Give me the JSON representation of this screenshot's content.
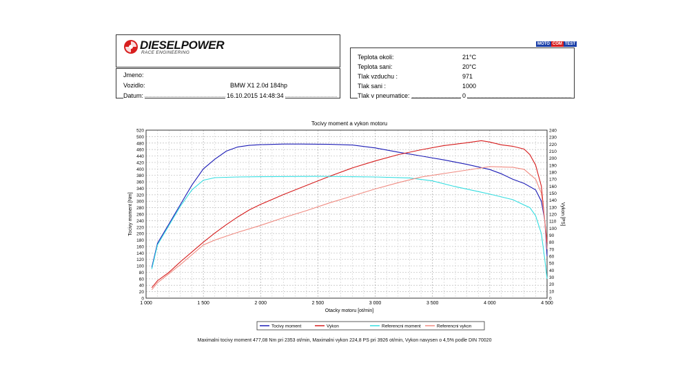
{
  "header": {
    "brand": "DIESELPOWER",
    "brand_sub": "RACE ENGINEERING",
    "badge": [
      "MOTO",
      "COM",
      "TEST"
    ]
  },
  "info": [
    {
      "label": "Jmeno:",
      "value": ""
    },
    {
      "label": "Vozidlo:",
      "value": "BMW X1 2.0d 184hp"
    },
    {
      "label": "Datum:",
      "value": "16.10.2015 14:48:34"
    }
  ],
  "conditions": [
    {
      "label": "Teplota okoli:",
      "value": "21°C"
    },
    {
      "label": "Teplota sani:",
      "value": "20°C"
    },
    {
      "label": "Tlak vzduchu :",
      "value": "971"
    },
    {
      "label": "Tlak sani :",
      "value": "1000"
    },
    {
      "label": "Tlak v pneumatice:",
      "value": "0"
    }
  ],
  "colors": {
    "torque": "#1a1ab5",
    "power": "#d61a1a",
    "ref_torque": "#33dde0",
    "ref_power": "#f08a80"
  },
  "chart_data": {
    "type": "line",
    "title": "Tocivy moment a vykon motoru",
    "xlabel": "Otacky motoru [ot/min]",
    "ylabel_left": "Tocivy moment [Nm]",
    "ylabel_right": "Vykon [PS]",
    "xlim": [
      1000,
      4500
    ],
    "ylim_left": [
      0,
      520
    ],
    "ylim_right": [
      0,
      240
    ],
    "x_ticks": [
      1000,
      1500,
      2000,
      2500,
      3000,
      3500,
      4000,
      4500
    ],
    "x_tick_labels": [
      "1 000",
      "1 500",
      "2 000",
      "2 500",
      "3 000",
      "3 500",
      "4 000",
      "4 500"
    ],
    "grid": true,
    "legend_position": "bottom",
    "series": [
      {
        "name": "Tocivy moment",
        "axis": "left",
        "color_key": "torque",
        "points": [
          [
            1050,
            95
          ],
          [
            1100,
            170
          ],
          [
            1200,
            230
          ],
          [
            1300,
            290
          ],
          [
            1400,
            350
          ],
          [
            1500,
            400
          ],
          [
            1600,
            430
          ],
          [
            1700,
            455
          ],
          [
            1800,
            468
          ],
          [
            1900,
            473
          ],
          [
            2000,
            475
          ],
          [
            2200,
            477
          ],
          [
            2353,
            477
          ],
          [
            2600,
            476
          ],
          [
            2800,
            474
          ],
          [
            3000,
            465
          ],
          [
            3200,
            452
          ],
          [
            3400,
            440
          ],
          [
            3600,
            428
          ],
          [
            3800,
            414
          ],
          [
            4000,
            398
          ],
          [
            4100,
            385
          ],
          [
            4200,
            368
          ],
          [
            4300,
            355
          ],
          [
            4400,
            335
          ],
          [
            4450,
            300
          ],
          [
            4480,
            240
          ],
          [
            4500,
            130
          ]
        ]
      },
      {
        "name": "Vykon",
        "axis": "right",
        "color_key": "power",
        "points": [
          [
            1050,
            15
          ],
          [
            1100,
            25
          ],
          [
            1200,
            37
          ],
          [
            1300,
            52
          ],
          [
            1400,
            66
          ],
          [
            1500,
            80
          ],
          [
            1600,
            93
          ],
          [
            1700,
            105
          ],
          [
            1800,
            116
          ],
          [
            1900,
            126
          ],
          [
            2000,
            134
          ],
          [
            2200,
            148
          ],
          [
            2400,
            161
          ],
          [
            2600,
            174
          ],
          [
            2800,
            186
          ],
          [
            3000,
            196
          ],
          [
            3200,
            205
          ],
          [
            3400,
            212
          ],
          [
            3600,
            218
          ],
          [
            3800,
            222
          ],
          [
            3926,
            225
          ],
          [
            4000,
            223
          ],
          [
            4100,
            219
          ],
          [
            4200,
            217
          ],
          [
            4300,
            213
          ],
          [
            4350,
            205
          ],
          [
            4400,
            190
          ],
          [
            4450,
            160
          ],
          [
            4480,
            110
          ],
          [
            4500,
            80
          ]
        ]
      },
      {
        "name": "Referencni moment",
        "axis": "left",
        "color_key": "ref_torque",
        "points": [
          [
            1050,
            90
          ],
          [
            1100,
            165
          ],
          [
            1200,
            225
          ],
          [
            1300,
            285
          ],
          [
            1400,
            335
          ],
          [
            1500,
            365
          ],
          [
            1600,
            373
          ],
          [
            1800,
            375
          ],
          [
            2000,
            376
          ],
          [
            2500,
            377
          ],
          [
            3000,
            375
          ],
          [
            3300,
            372
          ],
          [
            3500,
            363
          ],
          [
            3700,
            345
          ],
          [
            3900,
            330
          ],
          [
            4000,
            322
          ],
          [
            4200,
            305
          ],
          [
            4350,
            280
          ],
          [
            4400,
            255
          ],
          [
            4450,
            200
          ],
          [
            4480,
            120
          ],
          [
            4500,
            60
          ]
        ]
      },
      {
        "name": "Referencni vykon",
        "axis": "right",
        "color_key": "ref_power",
        "points": [
          [
            1050,
            12
          ],
          [
            1100,
            22
          ],
          [
            1200,
            35
          ],
          [
            1300,
            48
          ],
          [
            1400,
            62
          ],
          [
            1500,
            76
          ],
          [
            1600,
            83
          ],
          [
            1800,
            94
          ],
          [
            2000,
            104
          ],
          [
            2200,
            115
          ],
          [
            2400,
            125
          ],
          [
            2600,
            136
          ],
          [
            2800,
            146
          ],
          [
            3000,
            156
          ],
          [
            3200,
            165
          ],
          [
            3400,
            173
          ],
          [
            3600,
            178
          ],
          [
            3800,
            183
          ],
          [
            4000,
            188
          ],
          [
            4200,
            187
          ],
          [
            4300,
            184
          ],
          [
            4400,
            170
          ],
          [
            4450,
            150
          ],
          [
            4480,
            110
          ],
          [
            4500,
            70
          ]
        ]
      }
    ],
    "summary": "Maximalni tocivy moment 477,08 Nm pri 2353 ot/min,  Maximalni vykon 224,8 PS pri 3926 ot/min,  Vykon navysen o 4,5% podle DIN 70020"
  }
}
